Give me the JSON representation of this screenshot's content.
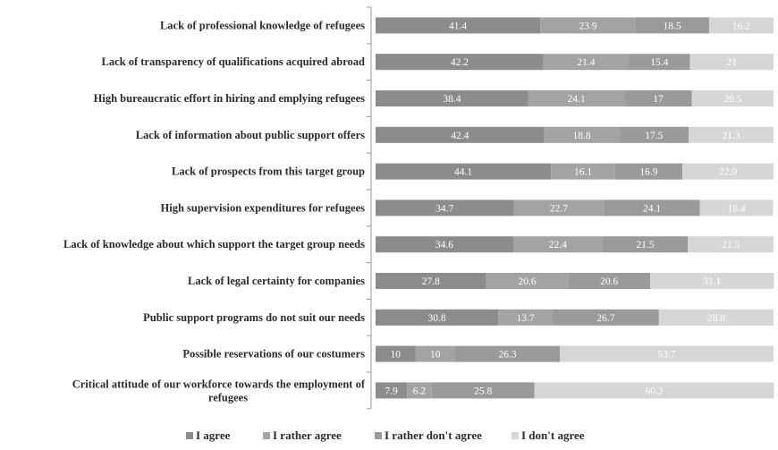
{
  "chart_data": {
    "type": "bar",
    "orientation": "horizontal",
    "stacked": true,
    "percent": true,
    "categories": [
      "Lack of professional knowledge of refugees",
      "Lack of transparency of qualifications acquired abroad",
      "High bureaucratic effort in hiring and emplying refugees",
      "Lack of information about public support offers",
      "Lack of prospects from this target group",
      "High supervision expenditures for refugees",
      "Lack of knowledge about which support the target group needs",
      "Lack of legal certainty for companies",
      "Public support programs do not suit our needs",
      "Possible reservations of our costumers",
      "Critical attitude of our workforce towards the employment of refugees"
    ],
    "series": [
      {
        "name": "I agree",
        "color": "#8c8c8c",
        "values": [
          41.4,
          42.2,
          38.4,
          42.4,
          44.1,
          34.7,
          34.6,
          27.8,
          30.8,
          10,
          7.9
        ]
      },
      {
        "name": "I rather agree",
        "color": "#a3a3a3",
        "values": [
          23.9,
          21.4,
          24.1,
          18.8,
          16.1,
          22.7,
          22.4,
          20.6,
          13.7,
          10,
          6.2
        ]
      },
      {
        "name": "I rather don't agree",
        "color": "#9a9a9a",
        "values": [
          18.5,
          15.4,
          17,
          17.5,
          16.9,
          24.1,
          21.5,
          20.6,
          26.7,
          26.3,
          25.8
        ]
      },
      {
        "name": "I don't agree",
        "color": "#d6d6d6",
        "values": [
          16.2,
          21,
          20.5,
          21.3,
          22.9,
          18.4,
          21.5,
          31.1,
          28.8,
          53.7,
          60.2
        ]
      }
    ],
    "xlim": [
      0,
      100
    ],
    "grid": false,
    "legend_position": "bottom"
  }
}
